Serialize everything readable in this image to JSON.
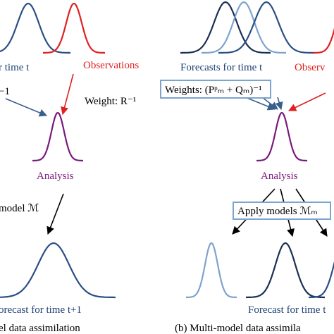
{
  "left": {
    "forecast_label": "r time t",
    "observations_label": "Observations",
    "forecast_weight": "−1",
    "observation_weight": "Weight: R⁻¹",
    "analysis_label": "Analysis",
    "model_label": "model ℳ",
    "next_forecast_label": "orecast for time t+1",
    "caption": "el data assimilation"
  },
  "right": {
    "forecast_label": "Forecasts for time t",
    "observations_label": "Observ",
    "forecast_weights": "Weights: (Pᵖₘ + Qₘ)⁻¹",
    "analysis_label": "Analysis",
    "models_label": "Apply models ℳₘ",
    "next_forecast_label": "Forecast for time t",
    "caption": "(b) Multi-model data assimila"
  }
}
